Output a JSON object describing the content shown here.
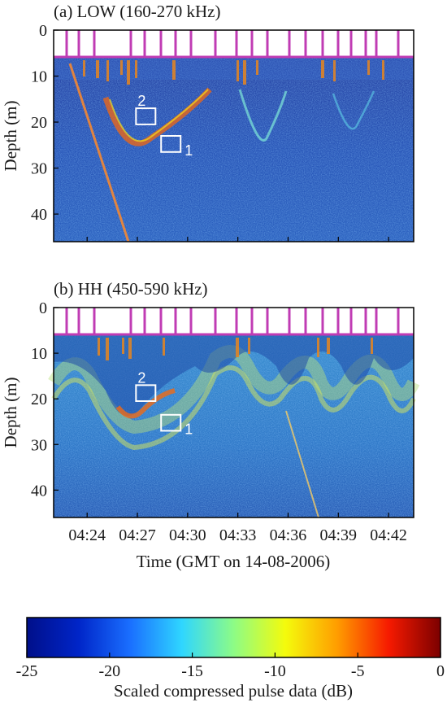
{
  "chart_data": [
    {
      "type": "heatmap",
      "title": "(a) LOW (160-270 kHz)",
      "ylabel": "Depth (m)",
      "xlabel": "",
      "yticks": [
        0,
        10,
        20,
        30,
        40
      ],
      "ylim": [
        0,
        46
      ],
      "y_reversed": true,
      "xticks": [],
      "boxes": [
        {
          "label": "2",
          "time": "04:27:30",
          "depth": [
            17,
            20.5
          ]
        },
        {
          "label": "1",
          "time": "04:29:00",
          "depth": [
            23,
            26.5
          ]
        }
      ]
    },
    {
      "type": "heatmap",
      "title": "(b) HH (450-590 kHz)",
      "ylabel": "Depth (m)",
      "xlabel": "Time (GMT on 14-08-2006)",
      "yticks": [
        0,
        10,
        20,
        30,
        40
      ],
      "ylim": [
        0,
        46
      ],
      "y_reversed": true,
      "xticks": [
        "04:24",
        "04:27",
        "04:30",
        "04:33",
        "04:36",
        "04:39",
        "04:42"
      ],
      "boxes": [
        {
          "label": "2",
          "time": "04:27:30",
          "depth": [
            17,
            20.5
          ]
        },
        {
          "label": "1",
          "time": "04:29:00",
          "depth": [
            23.5,
            27
          ]
        }
      ]
    },
    {
      "type": "colorbar",
      "label": "Scaled compressed pulse data (dB)",
      "ticks": [
        -25,
        -20,
        -15,
        -10,
        -5,
        0
      ],
      "range": [
        -25,
        0
      ],
      "colormap": [
        "#00008f",
        "#0000ff",
        "#00ffff",
        "#ffff00",
        "#ff0000",
        "#800000"
      ]
    }
  ]
}
